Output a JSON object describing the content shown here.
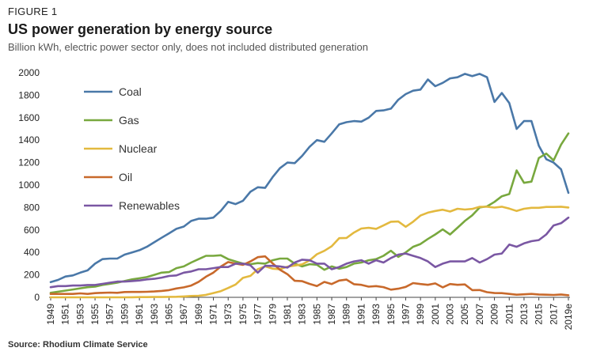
{
  "header": {
    "figure_label": "FIGURE 1",
    "title": "US power generation by energy source",
    "subtitle": "Billion kWh, electric power sector only, does not included distributed generation"
  },
  "footer": {
    "source": "Source: Rhodium Climate Service"
  },
  "chart_data": {
    "type": "line",
    "title": "US power generation by energy source",
    "ylabel": "Billion kWh",
    "xlabel": "",
    "ylim": [
      0,
      2000
    ],
    "yticks": [
      0,
      200,
      400,
      600,
      800,
      1000,
      1200,
      1400,
      1600,
      1800,
      2000
    ],
    "legend_position": "top-left",
    "grid": false,
    "x": [
      "1949",
      "1950",
      "1951",
      "1952",
      "1953",
      "1954",
      "1955",
      "1956",
      "1957",
      "1958",
      "1959",
      "1960",
      "1961",
      "1962",
      "1963",
      "1964",
      "1965",
      "1966",
      "1967",
      "1968",
      "1969",
      "1970",
      "1971",
      "1972",
      "1973",
      "1974",
      "1975",
      "1976",
      "1977",
      "1978",
      "1979",
      "1980",
      "1981",
      "1982",
      "1983",
      "1984",
      "1985",
      "1986",
      "1987",
      "1988",
      "1989",
      "1990",
      "1991",
      "1992",
      "1993",
      "1994",
      "1995",
      "1996",
      "1997",
      "1998",
      "1999",
      "2000",
      "2001",
      "2002",
      "2003",
      "2004",
      "2005",
      "2006",
      "2007",
      "2008",
      "2009",
      "2010",
      "2011",
      "2012",
      "2013",
      "2014",
      "2015",
      "2016",
      "2017",
      "2018",
      "2019e"
    ],
    "xtick_labels": [
      "1949",
      "1951",
      "1953",
      "1955",
      "1957",
      "1959",
      "1961",
      "1963",
      "1965",
      "1967",
      "1969",
      "1971",
      "1973",
      "1975",
      "1977",
      "1979",
      "1981",
      "1983",
      "1985",
      "1987",
      "1989",
      "1991",
      "1993",
      "1995",
      "1997",
      "1999",
      "2001",
      "2003",
      "2005",
      "2007",
      "2009",
      "2011",
      "2013",
      "2015",
      "2017",
      "2019e"
    ],
    "series": [
      {
        "name": "Coal",
        "color": "#4a78a8",
        "values": [
          135,
          155,
          185,
          195,
          220,
          240,
          300,
          340,
          345,
          345,
          380,
          400,
          420,
          450,
          490,
          530,
          570,
          610,
          630,
          680,
          700,
          700,
          710,
          770,
          850,
          830,
          860,
          940,
          980,
          975,
          1070,
          1150,
          1200,
          1195,
          1260,
          1340,
          1400,
          1385,
          1460,
          1540,
          1560,
          1570,
          1565,
          1600,
          1660,
          1665,
          1680,
          1760,
          1810,
          1840,
          1850,
          1940,
          1880,
          1910,
          1950,
          1960,
          1990,
          1970,
          1990,
          1960,
          1740,
          1820,
          1730,
          1500,
          1570,
          1570,
          1350,
          1230,
          1200,
          1140,
          930
        ]
      },
      {
        "name": "Gas",
        "color": "#78a83e",
        "values": [
          40,
          50,
          60,
          70,
          80,
          90,
          95,
          110,
          120,
          130,
          145,
          160,
          170,
          180,
          200,
          220,
          225,
          260,
          275,
          310,
          340,
          370,
          370,
          375,
          340,
          320,
          300,
          295,
          305,
          300,
          330,
          345,
          345,
          300,
          275,
          295,
          290,
          245,
          275,
          255,
          270,
          300,
          310,
          330,
          340,
          370,
          415,
          360,
          400,
          450,
          475,
          520,
          560,
          605,
          560,
          620,
          680,
          730,
          800,
          810,
          850,
          900,
          920,
          1130,
          1020,
          1030,
          1240,
          1280,
          1220,
          1360,
          1460
        ]
      },
      {
        "name": "Nuclear",
        "color": "#e3b93f",
        "values": [
          0,
          0,
          0,
          0,
          0,
          0,
          0,
          0,
          0,
          0,
          0,
          1,
          2,
          2,
          3,
          3,
          4,
          5,
          8,
          12,
          14,
          22,
          38,
          55,
          83,
          114,
          173,
          191,
          251,
          276,
          255,
          250,
          273,
          283,
          294,
          328,
          384,
          414,
          455,
          527,
          529,
          577,
          613,
          619,
          610,
          640,
          673,
          675,
          628,
          673,
          728,
          754,
          769,
          780,
          764,
          789,
          782,
          787,
          806,
          806,
          799,
          807,
          790,
          769,
          789,
          797,
          797,
          805,
          805,
          807,
          800
        ]
      },
      {
        "name": "Oil",
        "color": "#c8692b",
        "values": [
          30,
          30,
          30,
          30,
          35,
          30,
          37,
          40,
          42,
          40,
          47,
          48,
          48,
          49,
          52,
          57,
          64,
          79,
          89,
          105,
          138,
          184,
          220,
          274,
          314,
          300,
          289,
          320,
          358,
          365,
          303,
          246,
          206,
          147,
          144,
          120,
          100,
          137,
          118,
          149,
          158,
          117,
          111,
          95,
          100,
          91,
          68,
          77,
          93,
          127,
          118,
          111,
          124,
          89,
          118,
          111,
          115,
          64,
          65,
          46,
          38,
          37,
          30,
          23,
          27,
          30,
          25,
          23,
          21,
          25,
          18
        ]
      },
      {
        "name": "Renewables",
        "color": "#7a57a3",
        "values": [
          90,
          100,
          100,
          105,
          105,
          110,
          110,
          120,
          130,
          140,
          140,
          145,
          150,
          160,
          165,
          175,
          190,
          195,
          220,
          230,
          250,
          250,
          260,
          270,
          270,
          300,
          300,
          285,
          220,
          280,
          280,
          275,
          265,
          310,
          335,
          330,
          300,
          300,
          250,
          270,
          300,
          320,
          330,
          300,
          330,
          310,
          350,
          380,
          390,
          370,
          350,
          320,
          270,
          300,
          320,
          320,
          320,
          350,
          310,
          340,
          380,
          390,
          470,
          450,
          480,
          500,
          510,
          560,
          640,
          660,
          710
        ]
      }
    ]
  }
}
